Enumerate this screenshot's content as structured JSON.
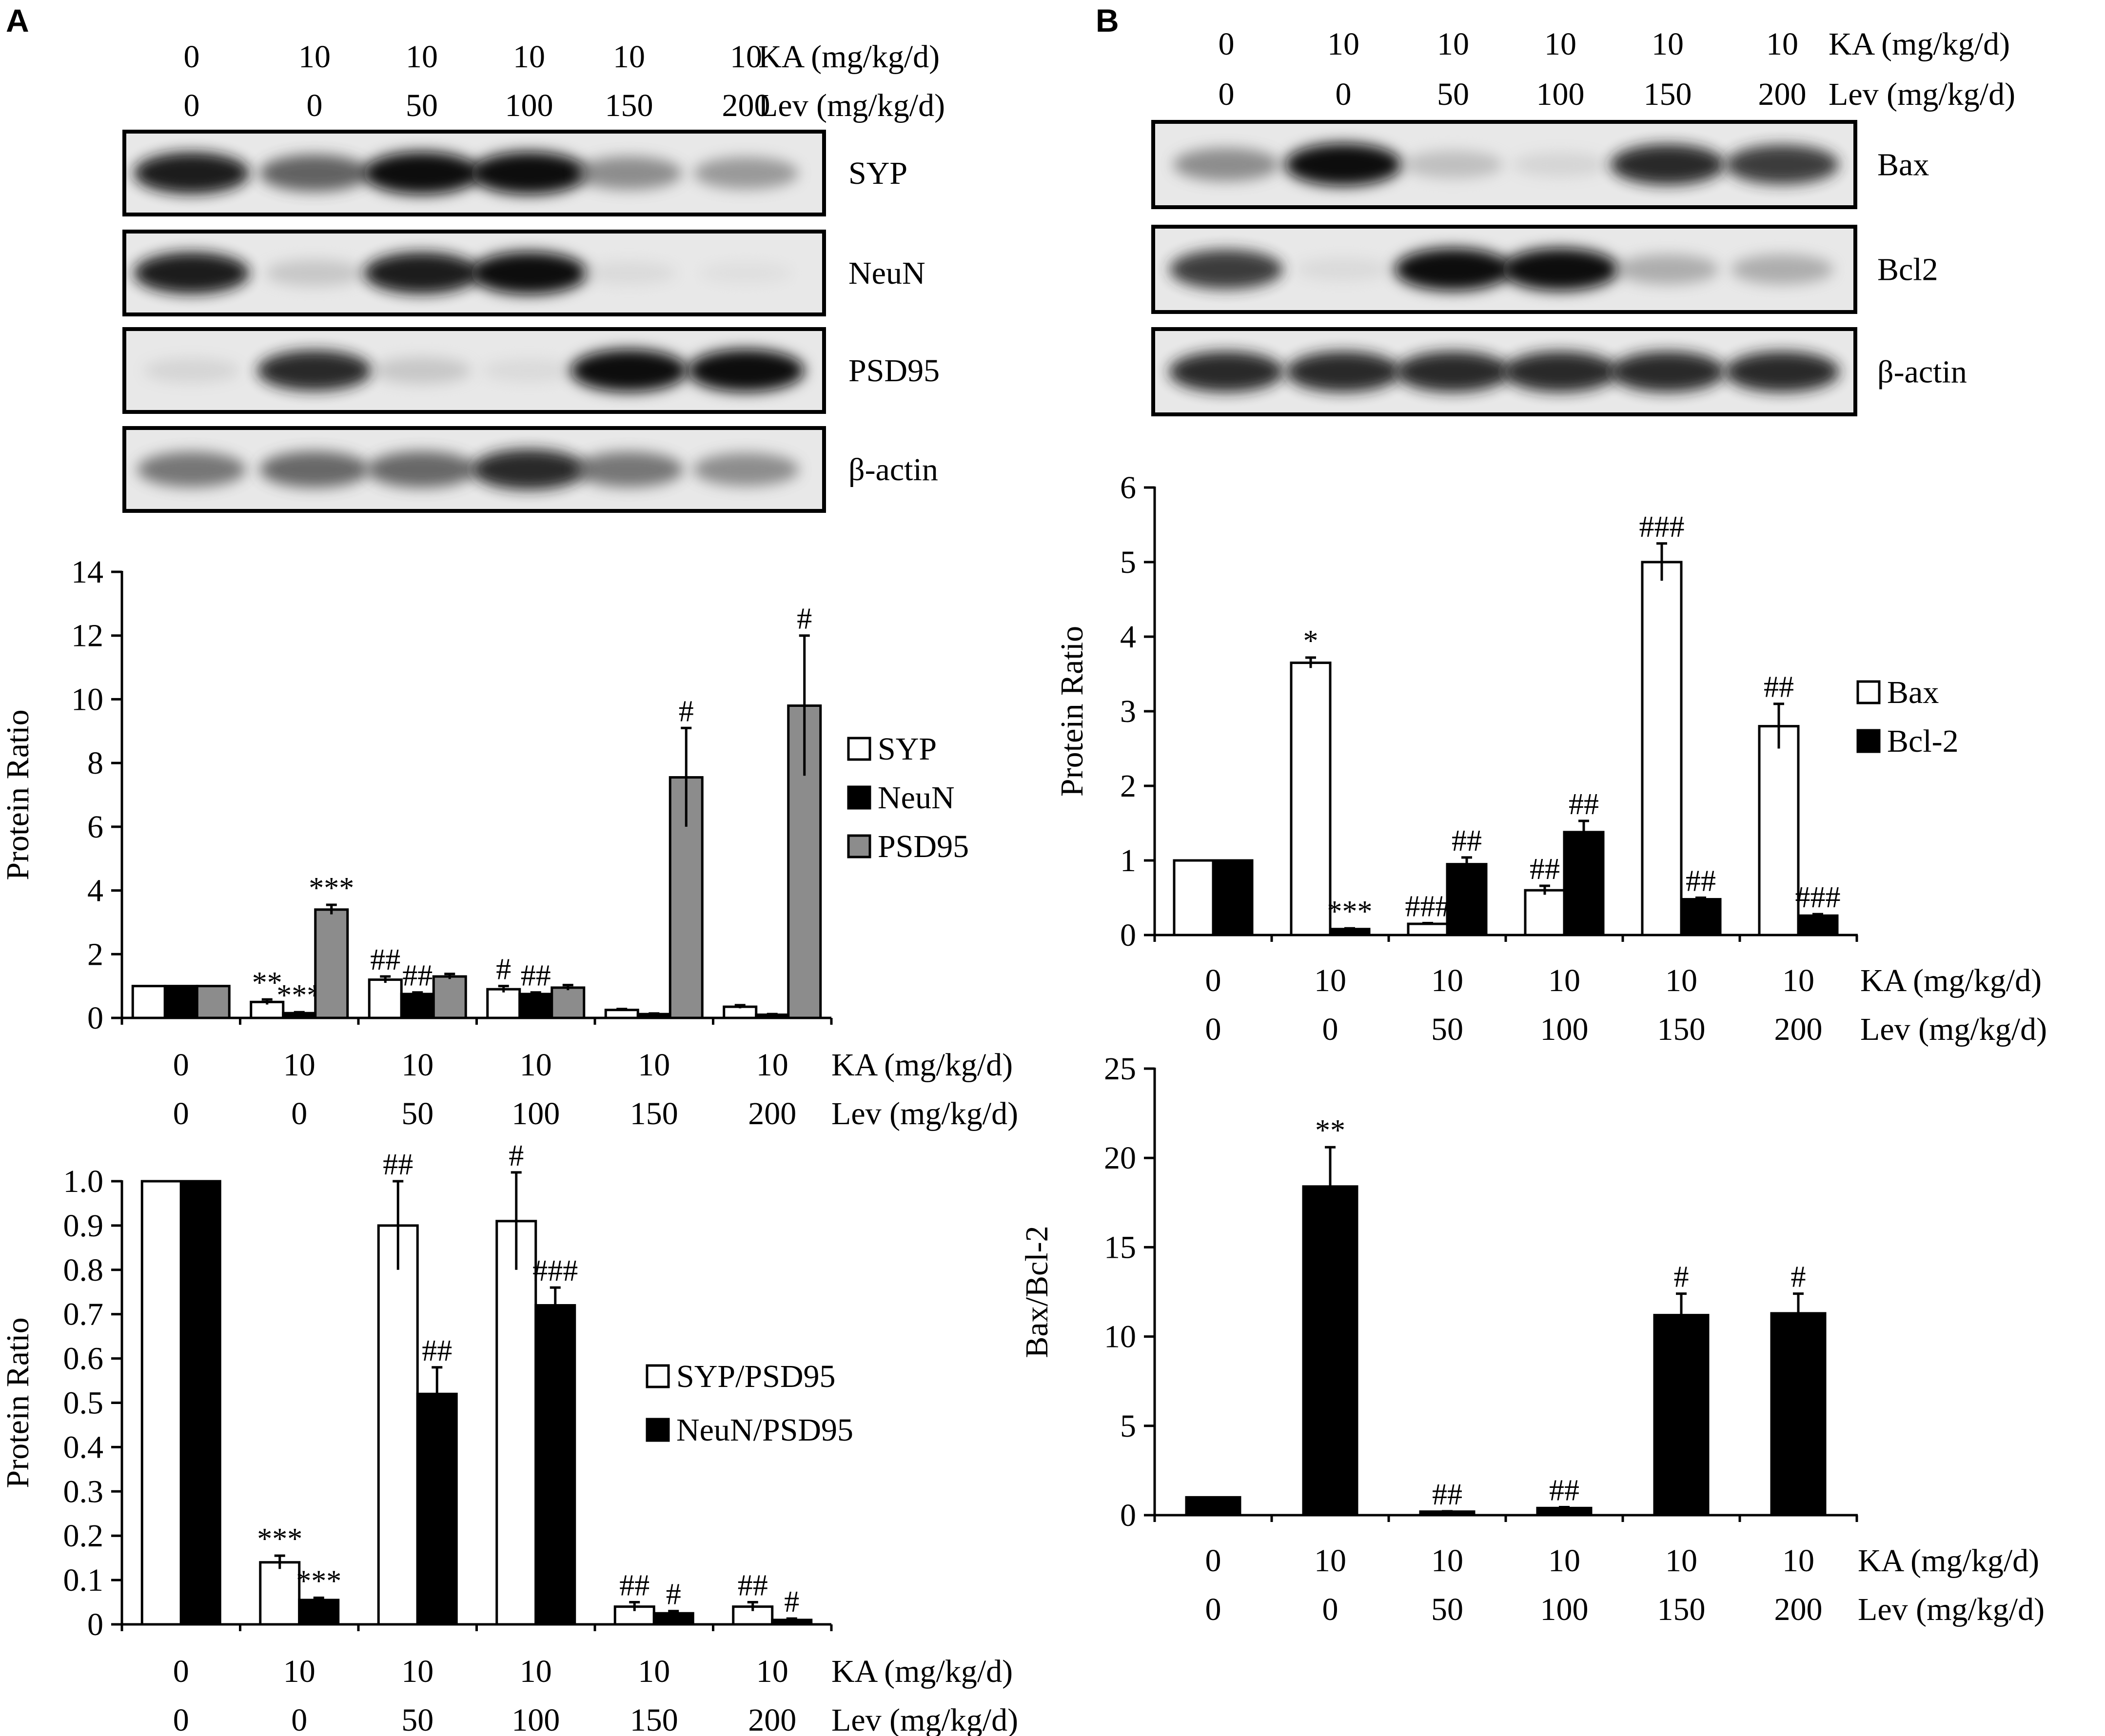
{
  "panels": [
    {
      "letter": "A",
      "blot": {
        "header": {
          "row1_values": [
            "0",
            "10",
            "10",
            "10",
            "10",
            "10"
          ],
          "row1_label": "KA (mg/kg/d)",
          "row2_values": [
            "0",
            "0",
            "50",
            "100",
            "150",
            "200"
          ],
          "row2_label": "Lev (mg/kg/d)"
        },
        "strips": [
          {
            "label": "SYP",
            "intensities": [
              0.95,
              0.72,
              1.0,
              1.0,
              0.55,
              0.5
            ]
          },
          {
            "label": "NeuN",
            "intensities": [
              0.95,
              0.25,
              0.95,
              1.0,
              0.1,
              0.05
            ]
          },
          {
            "label": "PSD95",
            "intensities": [
              0.15,
              0.9,
              0.25,
              0.1,
              1.0,
              1.0
            ]
          },
          {
            "label": "β-actin",
            "intensities": [
              0.65,
              0.7,
              0.7,
              0.9,
              0.65,
              0.55
            ]
          }
        ]
      }
    },
    {
      "letter": "B",
      "blot": {
        "header": {
          "row1_values": [
            "0",
            "10",
            "10",
            "10",
            "10",
            "10"
          ],
          "row1_label": "KA (mg/kg/d)",
          "row2_values": [
            "0",
            "0",
            "50",
            "100",
            "150",
            "200"
          ],
          "row2_label": "Lev (mg/kg/d)"
        },
        "strips": [
          {
            "label": "Bax",
            "intensities": [
              0.55,
              1.0,
              0.3,
              0.15,
              0.9,
              0.85
            ]
          },
          {
            "label": "Bcl2",
            "intensities": [
              0.85,
              0.1,
              1.0,
              1.0,
              0.4,
              0.4
            ]
          },
          {
            "label": "β-actin",
            "intensities": [
              0.9,
              0.9,
              0.9,
              0.9,
              0.9,
              0.9
            ]
          }
        ]
      }
    }
  ],
  "chart_data": [
    {
      "id": "A1",
      "type": "bar",
      "ylabel": "Protein Ratio",
      "ylim": [
        0,
        14
      ],
      "yticks": [
        "0",
        "2",
        "4",
        "6",
        "8",
        "10",
        "12",
        "14"
      ],
      "x_rows": [
        {
          "values": [
            "0",
            "10",
            "10",
            "10",
            "10",
            "10"
          ],
          "label": "KA (mg/kg/d)"
        },
        {
          "values": [
            "0",
            "0",
            "50",
            "100",
            "150",
            "200"
          ],
          "label": "Lev (mg/kg/d)"
        }
      ],
      "legend_position": "right",
      "series": [
        {
          "name": "SYP",
          "color": "#ffffff",
          "values": [
            1.0,
            0.5,
            1.2,
            0.9,
            0.25,
            0.35
          ],
          "errors": [
            0,
            0.08,
            0.1,
            0.1,
            0.03,
            0.05
          ],
          "labels": [
            "",
            "**",
            "##",
            "#",
            "",
            ""
          ]
        },
        {
          "name": "NeuN",
          "color": "#000000",
          "values": [
            1.0,
            0.15,
            0.75,
            0.75,
            0.12,
            0.1
          ],
          "errors": [
            0,
            0.03,
            0.05,
            0.05,
            0.02,
            0.02
          ],
          "labels": [
            "",
            "***",
            "##",
            "##",
            "",
            ""
          ]
        },
        {
          "name": "PSD95",
          "color": "#8c8c8c",
          "values": [
            1.0,
            3.4,
            1.3,
            0.95,
            7.55,
            9.8
          ],
          "errors": [
            0,
            0.15,
            0.08,
            0.08,
            1.55,
            2.2
          ],
          "labels": [
            "",
            "***",
            "",
            "",
            "#",
            "#"
          ]
        }
      ]
    },
    {
      "id": "A2",
      "type": "bar",
      "ylabel": "Protein Ratio",
      "ylim": [
        0,
        1.0
      ],
      "yticks": [
        "0",
        "0.1",
        "0.2",
        "0.3",
        "0.4",
        "0.5",
        "0.6",
        "0.7",
        "0.8",
        "0.9",
        "1.0"
      ],
      "x_rows": [
        {
          "values": [
            "0",
            "10",
            "10",
            "10",
            "10",
            "10"
          ],
          "label": "KA (mg/kg/d)"
        },
        {
          "values": [
            "0",
            "0",
            "50",
            "100",
            "150",
            "200"
          ],
          "label": "Lev (mg/kg/d)"
        }
      ],
      "legend_position": "right",
      "series": [
        {
          "name": "SYP/PSD95",
          "color": "#ffffff",
          "values": [
            1.0,
            0.14,
            0.9,
            0.91,
            0.04,
            0.04
          ],
          "errors": [
            0,
            0.015,
            0.1,
            0.11,
            0.01,
            0.01
          ],
          "labels": [
            "",
            "***",
            "##",
            "#",
            "##",
            "##"
          ]
        },
        {
          "name": "NeuN/PSD95",
          "color": "#000000",
          "values": [
            1.0,
            0.055,
            0.52,
            0.72,
            0.025,
            0.01
          ],
          "errors": [
            0,
            0.005,
            0.06,
            0.04,
            0.005,
            0.003
          ],
          "labels": [
            "",
            "***",
            "##",
            "###",
            "#",
            "#"
          ]
        }
      ]
    },
    {
      "id": "B1",
      "type": "bar",
      "ylabel": "Protein Ratio",
      "ylim": [
        0,
        6
      ],
      "yticks": [
        "0",
        "1",
        "2",
        "3",
        "4",
        "5",
        "6"
      ],
      "x_rows": [
        {
          "values": [
            "0",
            "10",
            "10",
            "10",
            "10",
            "10"
          ],
          "label": "KA (mg/kg/d)"
        },
        {
          "values": [
            "0",
            "0",
            "50",
            "100",
            "150",
            "200"
          ],
          "label": "Lev (mg/kg/d)"
        }
      ],
      "legend_position": "right",
      "series": [
        {
          "name": "Bax",
          "color": "#ffffff",
          "values": [
            1.0,
            3.65,
            0.15,
            0.6,
            5.0,
            2.8
          ],
          "errors": [
            0,
            0.07,
            0.01,
            0.06,
            0.25,
            0.3
          ],
          "labels": [
            "",
            "*",
            "###",
            "##",
            "###",
            "##"
          ]
        },
        {
          "name": "Bcl-2",
          "color": "#000000",
          "values": [
            1.0,
            0.08,
            0.95,
            1.38,
            0.48,
            0.26
          ],
          "errors": [
            0,
            0.01,
            0.09,
            0.15,
            0.02,
            0.02
          ],
          "labels": [
            "",
            "***",
            "##",
            "##",
            "##",
            "###"
          ]
        }
      ]
    },
    {
      "id": "B2",
      "type": "bar",
      "ylabel": "Bax/Bcl-2",
      "ylim": [
        0,
        25
      ],
      "yticks": [
        "0",
        "5",
        "10",
        "15",
        "20",
        "25"
      ],
      "x_rows": [
        {
          "values": [
            "0",
            "10",
            "10",
            "10",
            "10",
            "10"
          ],
          "label": "KA (mg/kg/d)"
        },
        {
          "values": [
            "0",
            "0",
            "50",
            "100",
            "150",
            "200"
          ],
          "label": "Lev (mg/kg/d)"
        }
      ],
      "series": [
        {
          "name": "",
          "color": "#000000",
          "values": [
            1.0,
            18.4,
            0.2,
            0.4,
            11.2,
            11.3
          ],
          "errors": [
            0,
            2.2,
            0.02,
            0.05,
            1.2,
            1.1
          ],
          "labels": [
            "",
            "**",
            "##",
            "##",
            "#",
            "#"
          ]
        }
      ]
    }
  ]
}
